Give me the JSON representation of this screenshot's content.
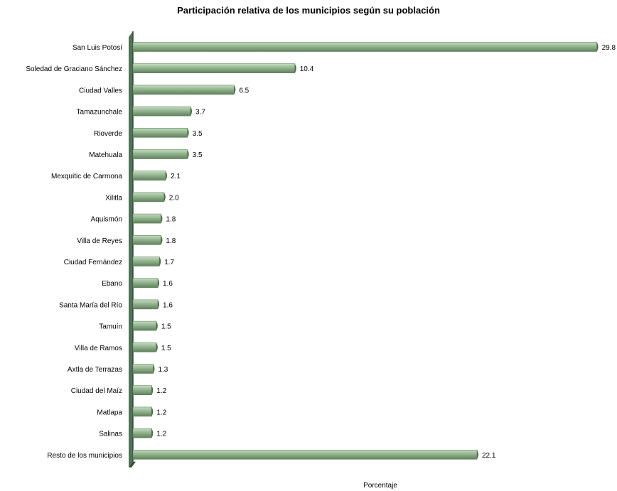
{
  "chart_data": {
    "type": "bar",
    "orientation": "horizontal",
    "title": "Participación relativa de los municipios según su población",
    "xlabel": "Porcentaje",
    "ylabel": "",
    "xlim": [
      0,
      30
    ],
    "grid": false,
    "legend": "none",
    "categories": [
      "San Luis Potosí",
      "Soledad de Graciano Sánchez",
      "Ciudad Valles",
      "Tamazunchale",
      "Rioverde",
      "Matehuala",
      "Mexquitic de Carmona",
      "Xilitla",
      "Aquismón",
      "Villa de Reyes",
      "Ciudad Fernández",
      "Ebano",
      "Santa María del Río",
      "Tamuín",
      "Villa de Ramos",
      "Axtla de Terrazas",
      "Ciudad del Maíz",
      "Matlapa",
      "Salinas",
      "Resto de los municipios"
    ],
    "values": [
      29.8,
      10.4,
      6.5,
      3.7,
      3.5,
      3.5,
      2.1,
      2.0,
      1.8,
      1.8,
      1.7,
      1.6,
      1.6,
      1.5,
      1.5,
      1.3,
      1.2,
      1.2,
      1.2,
      22.1
    ],
    "value_labels": [
      "29.8",
      "10.4",
      "6.5",
      "3.7",
      "3.5",
      "3.5",
      "2.1",
      "2.0",
      "1.8",
      "1.8",
      "1.7",
      "1.6",
      "1.6",
      "1.5",
      "1.5",
      "1.3",
      "1.2",
      "1.2",
      "1.2",
      "22.1"
    ],
    "colors": {
      "bar_top": "#c4dcc0",
      "bar_mid": "#93b48f",
      "bar_bottom": "#5f815b",
      "bar_end": "#4e6b4a",
      "axis_wall": "#4f7356",
      "axis_wall_dark": "#2f4a35"
    }
  }
}
